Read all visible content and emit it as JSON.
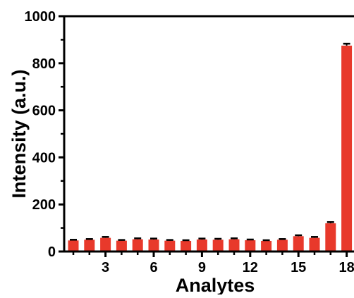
{
  "chart_data": {
    "type": "bar",
    "categories": [
      "1",
      "2",
      "3",
      "4",
      "5",
      "6",
      "7",
      "8",
      "9",
      "10",
      "11",
      "12",
      "13",
      "14",
      "15",
      "16",
      "17",
      "18"
    ],
    "values": [
      47,
      50,
      58,
      46,
      52,
      51,
      46,
      45,
      51,
      50,
      52,
      48,
      45,
      50,
      65,
      58,
      120,
      875
    ],
    "errors": [
      3,
      3,
      4,
      3,
      4,
      4,
      3,
      3,
      4,
      4,
      4,
      3,
      3,
      3,
      4,
      4,
      5,
      8
    ],
    "xlabel": "Analytes",
    "ylabel": "Intensity (a.u.)",
    "ylim": [
      0,
      1000
    ],
    "yticks": [
      0,
      200,
      400,
      600,
      800,
      1000
    ],
    "xticks": [
      3,
      6,
      9,
      12,
      15,
      18
    ],
    "bar_color": "#e8392b",
    "grid": false
  }
}
